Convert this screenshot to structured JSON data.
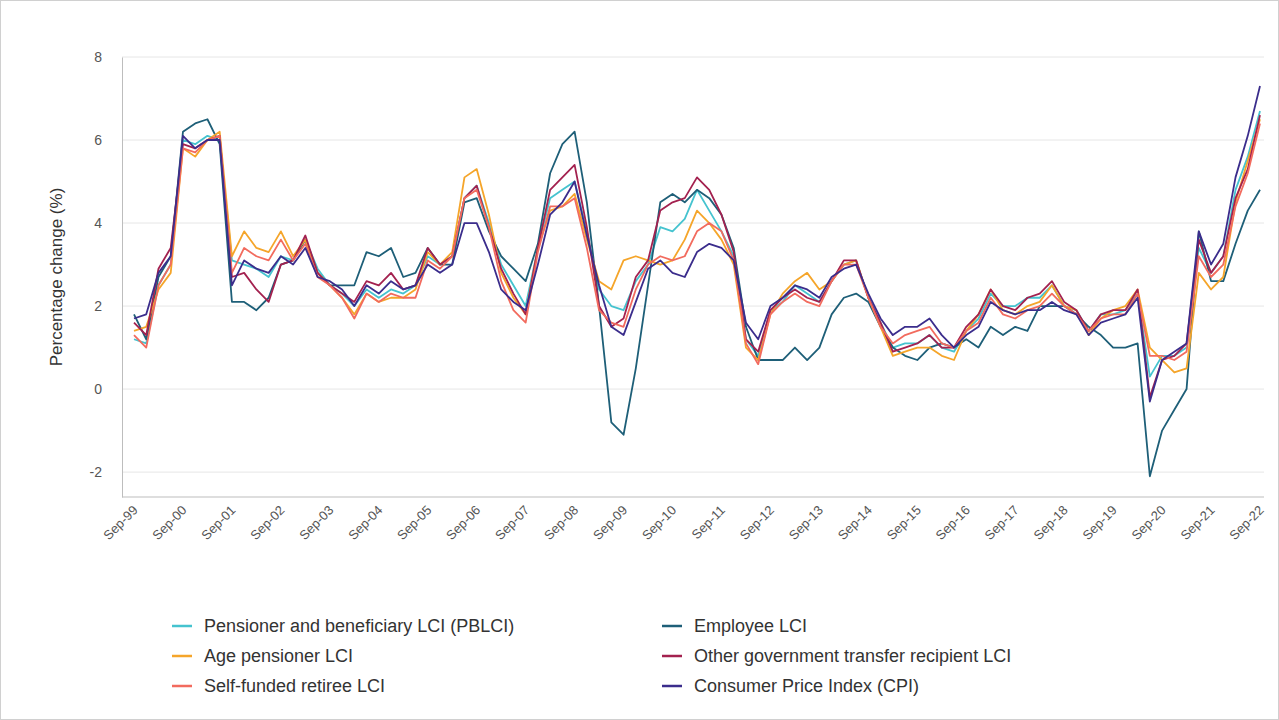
{
  "chart_data": {
    "type": "line",
    "y_label": "Percentage change (%)",
    "categories": [
      "Sep-99",
      null,
      null,
      null,
      "Sep-00",
      null,
      null,
      null,
      "Sep-01",
      null,
      null,
      null,
      "Sep-02",
      null,
      null,
      null,
      "Sep-03",
      null,
      null,
      null,
      "Sep-04",
      null,
      null,
      null,
      "Sep-05",
      null,
      null,
      null,
      "Sep-06",
      null,
      null,
      null,
      "Sep-07",
      null,
      null,
      null,
      "Sep-08",
      null,
      null,
      null,
      "Sep-09",
      null,
      null,
      null,
      "Sep-10",
      null,
      null,
      null,
      "Sep-11",
      null,
      null,
      null,
      "Sep-12",
      null,
      null,
      null,
      "Sep-13",
      null,
      null,
      null,
      "Sep-14",
      null,
      null,
      null,
      "Sep-15",
      null,
      null,
      null,
      "Sep-16",
      null,
      null,
      null,
      "Sep-17",
      null,
      null,
      null,
      "Sep-18",
      null,
      null,
      null,
      "Sep-19",
      null,
      null,
      null,
      "Sep-20",
      null,
      null,
      null,
      "Sep-21",
      null,
      null,
      null,
      "Sep-22"
    ],
    "series": [
      {
        "name": "Pensioner and beneficiary LCI (PBLCI)",
        "color": "#45c3cf",
        "values": [
          1.2,
          1.1,
          2.5,
          3.0,
          6.0,
          5.9,
          6.1,
          6.0,
          3.1,
          3.0,
          2.9,
          2.7,
          3.2,
          3.1,
          3.6,
          2.9,
          2.5,
          2.3,
          2.0,
          2.4,
          2.2,
          2.4,
          2.3,
          2.5,
          3.2,
          3.0,
          3.2,
          4.6,
          4.9,
          4.0,
          3.0,
          2.5,
          2.0,
          3.4,
          4.6,
          4.8,
          5.0,
          3.8,
          2.4,
          2.0,
          1.9,
          2.6,
          3.0,
          3.9,
          3.8,
          4.1,
          4.8,
          4.3,
          3.8,
          3.2,
          1.2,
          0.8,
          1.9,
          2.1,
          2.5,
          2.3,
          2.1,
          2.6,
          3.0,
          3.1,
          2.2,
          1.6,
          1.0,
          1.1,
          1.1,
          1.3,
          1.0,
          0.9,
          1.4,
          1.7,
          2.3,
          2.0,
          2.0,
          2.2,
          2.2,
          2.5,
          2.0,
          1.9,
          1.4,
          1.8,
          1.8,
          1.9,
          2.3,
          0.3,
          0.8,
          0.8,
          1.0,
          3.4,
          2.8,
          3.2,
          4.8,
          5.6,
          6.7
        ]
      },
      {
        "name": "Employee LCI",
        "color": "#1e5f78",
        "values": [
          1.8,
          1.2,
          2.7,
          3.2,
          6.2,
          6.4,
          6.5,
          5.9,
          2.1,
          2.1,
          1.9,
          2.2,
          3.0,
          3.1,
          3.6,
          2.8,
          2.5,
          2.5,
          2.5,
          3.3,
          3.2,
          3.4,
          2.7,
          2.8,
          3.4,
          3.0,
          3.0,
          4.5,
          4.6,
          3.8,
          3.2,
          2.9,
          2.6,
          3.5,
          5.2,
          5.9,
          6.2,
          4.5,
          2.0,
          -0.8,
          -1.1,
          0.5,
          2.5,
          4.5,
          4.7,
          4.5,
          4.8,
          4.6,
          4.2,
          3.4,
          1.5,
          0.7,
          0.7,
          0.7,
          1.0,
          0.7,
          1.0,
          1.8,
          2.2,
          2.3,
          2.1,
          1.5,
          1.0,
          0.8,
          0.7,
          1.0,
          1.1,
          1.0,
          1.2,
          1.0,
          1.5,
          1.3,
          1.5,
          1.4,
          2.0,
          2.0,
          2.0,
          1.8,
          1.5,
          1.3,
          1.0,
          1.0,
          1.1,
          -2.1,
          -1.0,
          -0.5,
          0.0,
          3.8,
          2.6,
          2.6,
          3.5,
          4.3,
          4.8
        ]
      },
      {
        "name": "Age pensioner LCI",
        "color": "#f5a52a",
        "values": [
          1.4,
          1.5,
          2.4,
          2.8,
          5.8,
          5.6,
          6.0,
          6.2,
          3.2,
          3.8,
          3.4,
          3.3,
          3.8,
          3.2,
          3.6,
          2.8,
          2.5,
          2.2,
          1.8,
          2.3,
          2.1,
          2.2,
          2.2,
          2.4,
          3.3,
          3.0,
          3.3,
          5.1,
          5.3,
          4.2,
          2.8,
          2.2,
          1.8,
          3.4,
          4.3,
          4.4,
          4.7,
          3.6,
          2.6,
          2.4,
          3.1,
          3.2,
          3.1,
          3.0,
          3.1,
          3.6,
          4.3,
          4.0,
          3.6,
          3.0,
          1.0,
          0.7,
          1.8,
          2.3,
          2.6,
          2.8,
          2.4,
          2.6,
          3.0,
          3.1,
          2.2,
          1.5,
          0.8,
          0.9,
          1.0,
          1.0,
          0.8,
          0.7,
          1.4,
          1.8,
          2.4,
          1.9,
          1.8,
          2.0,
          2.1,
          2.5,
          2.0,
          1.9,
          1.3,
          1.7,
          1.9,
          2.0,
          2.4,
          1.0,
          0.7,
          0.4,
          0.5,
          2.8,
          2.4,
          2.7,
          4.5,
          5.5,
          6.5
        ]
      },
      {
        "name": "Other government transfer recipient LCI",
        "color": "#a3214f",
        "values": [
          1.6,
          1.3,
          2.9,
          3.4,
          5.9,
          5.8,
          6.0,
          6.1,
          2.7,
          2.8,
          2.4,
          2.1,
          3.0,
          3.1,
          3.7,
          2.8,
          2.5,
          2.3,
          2.1,
          2.6,
          2.5,
          2.8,
          2.4,
          2.5,
          3.4,
          3.0,
          3.2,
          4.6,
          4.9,
          3.9,
          2.9,
          2.3,
          1.8,
          3.4,
          4.8,
          5.1,
          5.4,
          3.9,
          2.0,
          1.5,
          1.7,
          2.7,
          3.1,
          4.3,
          4.5,
          4.6,
          5.1,
          4.8,
          4.2,
          3.3,
          1.2,
          0.9,
          1.9,
          2.2,
          2.4,
          2.2,
          2.1,
          2.6,
          3.1,
          3.1,
          2.2,
          1.6,
          0.9,
          1.0,
          1.1,
          1.3,
          1.0,
          1.0,
          1.5,
          1.8,
          2.4,
          2.0,
          1.9,
          2.2,
          2.3,
          2.6,
          2.1,
          1.9,
          1.4,
          1.8,
          1.9,
          1.9,
          2.4,
          -0.2,
          0.7,
          0.8,
          1.1,
          3.6,
          2.8,
          3.2,
          4.6,
          5.3,
          6.6
        ]
      },
      {
        "name": "Self-funded retiree LCI",
        "color": "#f26b5e",
        "values": [
          1.3,
          1.0,
          2.5,
          3.0,
          5.8,
          5.7,
          6.0,
          6.1,
          2.8,
          3.4,
          3.2,
          3.1,
          3.6,
          3.1,
          3.5,
          2.7,
          2.5,
          2.2,
          1.7,
          2.3,
          2.1,
          2.3,
          2.2,
          2.2,
          3.1,
          2.9,
          3.2,
          4.6,
          4.8,
          3.9,
          2.6,
          1.9,
          1.6,
          3.3,
          4.4,
          4.4,
          4.6,
          3.4,
          1.9,
          1.6,
          1.5,
          2.4,
          3.0,
          3.2,
          3.1,
          3.2,
          3.8,
          4.0,
          3.8,
          3.1,
          1.1,
          0.6,
          1.8,
          2.1,
          2.3,
          2.1,
          2.0,
          2.6,
          3.0,
          3.0,
          2.2,
          1.5,
          1.1,
          1.3,
          1.4,
          1.5,
          1.1,
          1.0,
          1.4,
          1.6,
          2.2,
          1.8,
          1.7,
          1.9,
          2.0,
          2.3,
          2.0,
          1.8,
          1.4,
          1.7,
          1.8,
          1.8,
          2.3,
          0.8,
          0.8,
          0.7,
          0.9,
          3.2,
          2.7,
          3.0,
          4.4,
          5.2,
          6.4
        ]
      },
      {
        "name": "Consumer Price Index (CPI)",
        "color": "#3b2d8c",
        "values": [
          1.7,
          1.8,
          2.8,
          3.2,
          6.1,
          5.8,
          6.0,
          6.0,
          2.5,
          3.1,
          2.9,
          2.8,
          3.2,
          3.0,
          3.4,
          2.7,
          2.6,
          2.4,
          2.0,
          2.5,
          2.3,
          2.6,
          2.4,
          2.5,
          3.0,
          2.8,
          3.0,
          4.0,
          4.0,
          3.3,
          2.4,
          2.1,
          1.9,
          3.0,
          4.2,
          4.5,
          5.0,
          3.7,
          2.5,
          1.5,
          1.3,
          2.1,
          2.9,
          3.1,
          2.8,
          2.7,
          3.3,
          3.5,
          3.4,
          3.1,
          1.6,
          1.2,
          2.0,
          2.2,
          2.5,
          2.4,
          2.2,
          2.7,
          2.9,
          3.0,
          2.3,
          1.7,
          1.3,
          1.5,
          1.5,
          1.7,
          1.3,
          1.0,
          1.3,
          1.5,
          2.1,
          1.9,
          1.8,
          1.9,
          1.9,
          2.1,
          1.9,
          1.8,
          1.3,
          1.6,
          1.7,
          1.8,
          2.2,
          -0.3,
          0.7,
          0.9,
          1.1,
          3.8,
          3.0,
          3.5,
          5.1,
          6.1,
          7.3
        ]
      }
    ],
    "ylim": [
      -2.6,
      8
    ],
    "yticks": [
      -2,
      0,
      2,
      4,
      6,
      8
    ],
    "grid": true,
    "legend": "bottom"
  }
}
